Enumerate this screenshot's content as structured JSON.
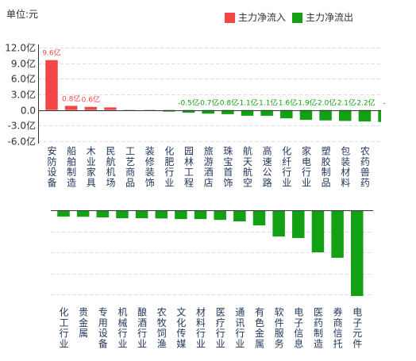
{
  "unit_label": "单位:元",
  "legend": {
    "inflow": {
      "label": "主力净流入",
      "color": "#f24646"
    },
    "outflow": {
      "label": "主力净流出",
      "color": "#14a014"
    }
  },
  "chart_data": [
    {
      "type": "bar",
      "categories": [
        "安防设备",
        "船舶制造",
        "木业家具",
        "民航机场",
        "工艺商品",
        "装修装饰",
        "化肥行业",
        "园林工程",
        "旅游酒店",
        "珠宝首饰",
        "航天航空",
        "高速公路",
        "化纤行业",
        "家电行业",
        "塑胶制品",
        "包装材料",
        "农药兽药",
        ""
      ],
      "values": [
        9.6,
        0.8,
        0.6,
        0.5,
        -0.1,
        -0.2,
        -0.3,
        -0.5,
        -0.7,
        -0.8,
        -1.1,
        -1.1,
        -1.6,
        -1.9,
        -2.0,
        -2.1,
        -2.2,
        -2.3
      ],
      "data_labels": [
        "9.6亿",
        "0.8亿",
        "0.6亿",
        "",
        "",
        "",
        "",
        "-0.5亿",
        "-0.7亿",
        "-0.8亿",
        "-1.1亿",
        "-1.1亿",
        "-1.6亿",
        "-1.9亿",
        "-2.0亿",
        "-2.1亿",
        "-2.2亿",
        "-"
      ],
      "y_ticks": [
        "12.0亿",
        "9.0亿",
        "6.0亿",
        "3.0亿",
        "0.0",
        "-3.0亿",
        "-6.0亿"
      ],
      "y_tick_values": [
        12,
        9,
        6,
        3,
        0,
        -3,
        -6
      ],
      "ylim": [
        -6,
        12
      ],
      "grid": true
    },
    {
      "type": "bar",
      "categories": [
        "化工行业",
        "贵金属",
        "专用设备",
        "机械行业",
        "酿酒行业",
        "农牧饲渔",
        "文化传媒",
        "材料行业",
        "医疗行业",
        "通讯行业",
        "有色金属",
        "软件服务",
        "电子信息",
        "医药制造",
        "券商信托",
        "电子元件"
      ],
      "values": [
        -3.0,
        -3.1,
        -3.4,
        -3.8,
        -3.8,
        -3.9,
        -4.2,
        -4.2,
        -4.6,
        -5.3,
        -7.2,
        -12.5,
        -13.2,
        -20.0,
        -22.6,
        -40.8
      ],
      "ylim": [
        -40,
        0
      ],
      "grid": true
    }
  ]
}
